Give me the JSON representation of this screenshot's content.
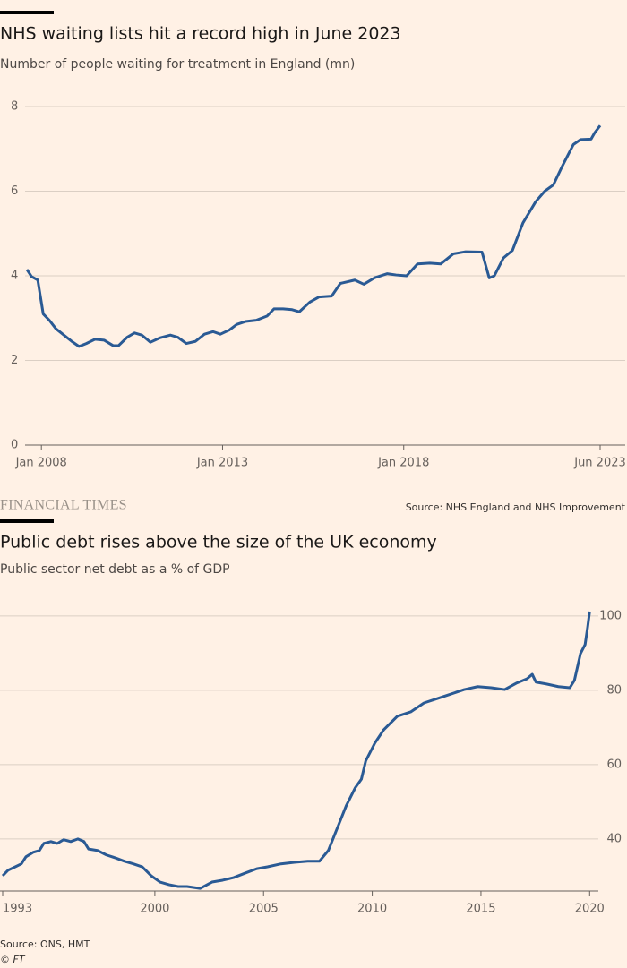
{
  "chart_data": [
    {
      "type": "line",
      "title": "NHS waiting lists hit a record high in June 2023",
      "subtitle": "Number of people waiting for treatment in England (mn)",
      "source": "Source: NHS England and NHS Improvement",
      "x": [
        2007.6,
        2007.73,
        2007.9,
        2008.05,
        2008.22,
        2008.4,
        2008.59,
        2008.84,
        2009.04,
        2009.24,
        2009.48,
        2009.73,
        2009.98,
        2010.13,
        2010.37,
        2010.57,
        2010.77,
        2011.01,
        2011.26,
        2011.56,
        2011.76,
        2012.0,
        2012.25,
        2012.5,
        2012.74,
        2012.94,
        2013.19,
        2013.39,
        2013.63,
        2013.93,
        2014.23,
        2014.42,
        2014.67,
        2014.92,
        2015.12,
        2015.41,
        2015.66,
        2016.01,
        2016.25,
        2016.65,
        2016.9,
        2017.19,
        2017.54,
        2017.79,
        2018.08,
        2018.38,
        2018.72,
        2019.02,
        2019.37,
        2019.71,
        2020.16,
        2020.36,
        2020.5,
        2020.75,
        2021.0,
        2021.29,
        2021.64,
        2021.89,
        2022.13,
        2022.38,
        2022.68,
        2022.88,
        2023.17,
        2023.27,
        2023.42
      ],
      "series": [
        {
          "name": "Waiting list",
          "color": "#2a5a94",
          "values": [
            4.15,
            3.98,
            3.9,
            3.1,
            2.95,
            2.75,
            2.62,
            2.45,
            2.33,
            2.4,
            2.5,
            2.48,
            2.35,
            2.35,
            2.55,
            2.65,
            2.6,
            2.43,
            2.53,
            2.6,
            2.55,
            2.4,
            2.45,
            2.62,
            2.68,
            2.62,
            2.72,
            2.85,
            2.92,
            2.95,
            3.05,
            3.22,
            3.22,
            3.2,
            3.15,
            3.38,
            3.5,
            3.52,
            3.82,
            3.9,
            3.8,
            3.95,
            4.05,
            4.02,
            4.0,
            4.28,
            4.3,
            4.28,
            4.52,
            4.57,
            4.56,
            3.95,
            4.0,
            4.42,
            4.6,
            5.25,
            5.75,
            6.0,
            6.15,
            6.6,
            7.1,
            7.22,
            7.23,
            7.38,
            7.55
          ]
        }
      ],
      "xlim": [
        2007.55,
        2023.42
      ],
      "xticks": [
        {
          "value": 2008,
          "label": "Jan 2008"
        },
        {
          "value": 2013,
          "label": "Jan 2013"
        },
        {
          "value": 2018,
          "label": "Jan 2018"
        },
        {
          "value": 2023.42,
          "label": "Jun 2023"
        }
      ],
      "ylim": [
        0,
        8
      ],
      "yticks": [
        0,
        2,
        4,
        6,
        8
      ],
      "grid": true
    },
    {
      "type": "line",
      "title": "Public debt rises above the size of the UK economy",
      "subtitle": "Public sector net debt as a % of GDP",
      "source": "Source: ONS, HMT",
      "x": [
        1993.0,
        1993.25,
        1993.58,
        1993.86,
        1994.07,
        1994.4,
        1994.69,
        1994.89,
        1995.22,
        1995.51,
        1995.8,
        1996.13,
        1996.46,
        1996.74,
        1996.95,
        1997.36,
        1997.77,
        1998.19,
        1998.6,
        1999.01,
        1999.42,
        1999.83,
        2000.24,
        2000.65,
        2001.07,
        2001.48,
        2002.09,
        2002.63,
        2003.12,
        2003.62,
        2004.15,
        2004.69,
        2005.18,
        2005.8,
        2006.42,
        2007.03,
        2007.57,
        2007.98,
        2008.39,
        2008.8,
        2009.21,
        2009.5,
        2009.7,
        2010.12,
        2010.53,
        2011.15,
        2011.77,
        2012.38,
        2013.0,
        2013.62,
        2014.23,
        2014.85,
        2015.47,
        2016.09,
        2016.62,
        2017.12,
        2017.36,
        2017.53,
        2018.02,
        2018.56,
        2019.09,
        2019.3,
        2019.58,
        2019.79,
        2019.91,
        2020.0
      ],
      "series": [
        {
          "name": "Net debt",
          "color": "#2a5a94",
          "values": [
            30.1,
            31.6,
            32.5,
            33.3,
            35.2,
            36.4,
            36.9,
            38.8,
            39.3,
            38.8,
            39.8,
            39.3,
            40.0,
            39.3,
            37.3,
            36.9,
            35.7,
            34.9,
            34.0,
            33.3,
            32.5,
            30.1,
            28.4,
            27.7,
            27.2,
            27.2,
            26.7,
            28.4,
            28.9,
            29.6,
            30.8,
            32.0,
            32.5,
            33.3,
            33.7,
            34.0,
            34.0,
            36.9,
            42.9,
            48.9,
            53.7,
            56.1,
            61.0,
            65.8,
            69.4,
            73.0,
            74.2,
            76.6,
            77.8,
            79.0,
            80.2,
            81.0,
            80.7,
            80.2,
            81.9,
            83.1,
            84.3,
            82.2,
            81.7,
            81.0,
            80.7,
            82.7,
            89.9,
            92.3,
            97.1,
            101.2
          ]
        }
      ],
      "xlim": [
        1993,
        2020.4
      ],
      "xticks": [
        1993,
        2000,
        2005,
        2010,
        2015,
        2020
      ],
      "ylim": [
        26,
        102
      ],
      "yticks": [
        40,
        60,
        80,
        100
      ],
      "grid": true
    }
  ],
  "branding": "FINANCIAL TIMES",
  "copyright": "© FT"
}
